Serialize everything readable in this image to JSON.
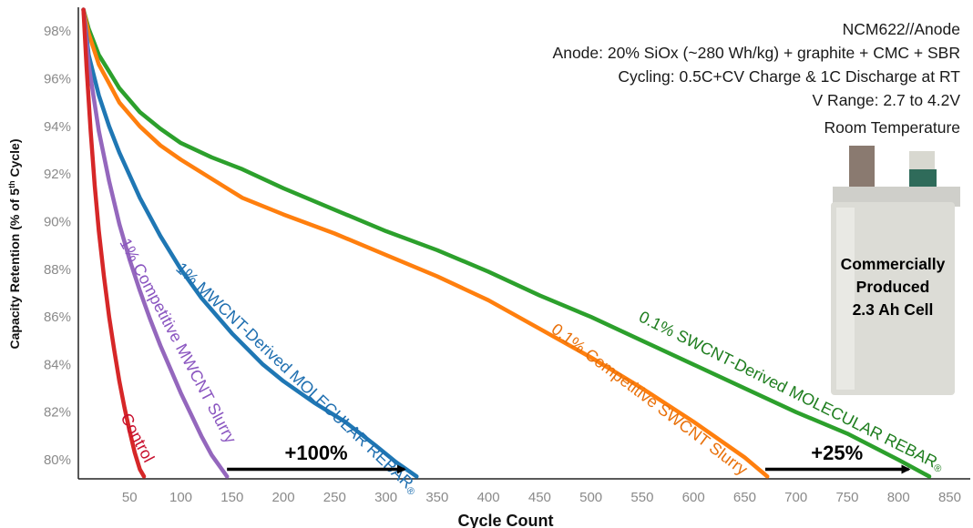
{
  "chart_data": {
    "type": "line",
    "xlabel": "Cycle Count",
    "ylabel_parts": [
      "Capacity Retention (% of 5",
      "th",
      " Cycle)"
    ],
    "xlim": [
      0,
      870
    ],
    "ylim": [
      79.2,
      99
    ],
    "x_ticks": [
      50,
      100,
      150,
      200,
      250,
      300,
      350,
      400,
      450,
      500,
      550,
      600,
      650,
      700,
      750,
      800,
      850
    ],
    "y_ticks": [
      80,
      82,
      84,
      86,
      88,
      90,
      92,
      94,
      96,
      98
    ],
    "y_tick_labels": [
      "80%",
      "82%",
      "84%",
      "86%",
      "88%",
      "90%",
      "92%",
      "94%",
      "96%",
      "98%"
    ],
    "grid": false,
    "info_lines": [
      "NCM622//Anode",
      "Anode: 20% SiOx  (~280 Wh/kg) + graphite + CMC + SBR",
      "Cycling: 0.5C+CV Charge & 1C Discharge at RT",
      "V Range: 2.7 to 4.2V",
      "Room Temperature"
    ],
    "cell_image_label_lines": [
      "Commercially",
      "Produced",
      "2.3 Ah Cell"
    ],
    "series": [
      {
        "name": "0.1% SWCNT-Derived MOLECULAR REBAR",
        "label_text": "0.1% SWCNT-Derived MOLECULAR REBAR",
        "label_mark": "®",
        "color": "#2ca02c",
        "x": [
          5,
          10,
          20,
          30,
          40,
          60,
          80,
          100,
          130,
          160,
          200,
          250,
          300,
          350,
          400,
          450,
          500,
          550,
          600,
          650,
          700,
          750,
          800,
          830
        ],
        "y": [
          98.9,
          98.1,
          97.0,
          96.3,
          95.6,
          94.6,
          93.9,
          93.3,
          92.7,
          92.2,
          91.4,
          90.5,
          89.6,
          88.8,
          87.9,
          86.9,
          86.0,
          85.0,
          84.0,
          83.0,
          82.0,
          81.1,
          80.0,
          79.3
        ]
      },
      {
        "name": "0.1% Competitive SWCNT Slurry",
        "label_text": "0.1% Competitive SWCNT Slurry",
        "color": "#ff7f0e",
        "x": [
          5,
          10,
          20,
          30,
          40,
          60,
          80,
          100,
          130,
          160,
          200,
          250,
          300,
          350,
          400,
          450,
          500,
          550,
          600,
          650,
          672
        ],
        "y": [
          98.9,
          97.9,
          96.6,
          95.8,
          95.0,
          94.0,
          93.2,
          92.6,
          91.8,
          91.0,
          90.3,
          89.5,
          88.6,
          87.7,
          86.7,
          85.5,
          84.3,
          83.0,
          81.6,
          80.1,
          79.3
        ]
      },
      {
        "name": "1% MWCNT-Derived MOLECULAR REBAR",
        "label_text": "1% MWCNT-Derived MOLECULAR REBAR",
        "label_mark": "®",
        "color": "#1f77b4",
        "x": [
          5,
          10,
          20,
          30,
          40,
          60,
          80,
          100,
          120,
          150,
          180,
          200,
          230,
          260,
          290,
          310,
          330
        ],
        "y": [
          98.9,
          97.0,
          95.3,
          94.0,
          92.9,
          91.0,
          89.4,
          88.0,
          86.8,
          85.3,
          84.0,
          83.3,
          82.4,
          81.6,
          80.6,
          79.9,
          79.3
        ]
      },
      {
        "name": "1% Competitive MWCNT Slurry",
        "label_text": "1% Competitive MWCNT Slurry",
        "color": "#9467bd",
        "x": [
          5,
          10,
          20,
          30,
          40,
          50,
          60,
          70,
          80,
          90,
          100,
          110,
          120,
          130,
          140,
          145
        ],
        "y": [
          98.9,
          96.6,
          93.8,
          91.7,
          89.9,
          88.4,
          87.1,
          85.9,
          84.8,
          83.8,
          82.8,
          81.9,
          81.0,
          80.2,
          79.6,
          79.3
        ]
      },
      {
        "name": "Control",
        "label_text": "Control",
        "color": "#d62728",
        "x": [
          5,
          8,
          12,
          16,
          20,
          25,
          30,
          35,
          40,
          45,
          50,
          55,
          60,
          64
        ],
        "y": [
          98.9,
          96.5,
          93.8,
          91.5,
          89.6,
          87.7,
          86.0,
          84.6,
          83.3,
          82.2,
          81.2,
          80.3,
          79.6,
          79.3
        ]
      }
    ],
    "annotations": [
      {
        "text": "+100%",
        "x_from": 145,
        "x_to": 318,
        "y": 79.6,
        "label_x": 232,
        "label_y": 80.0
      },
      {
        "text": "+25%",
        "x_from": 670,
        "x_to": 810,
        "y": 79.6,
        "label_x": 740,
        "label_y": 80.0
      }
    ]
  }
}
